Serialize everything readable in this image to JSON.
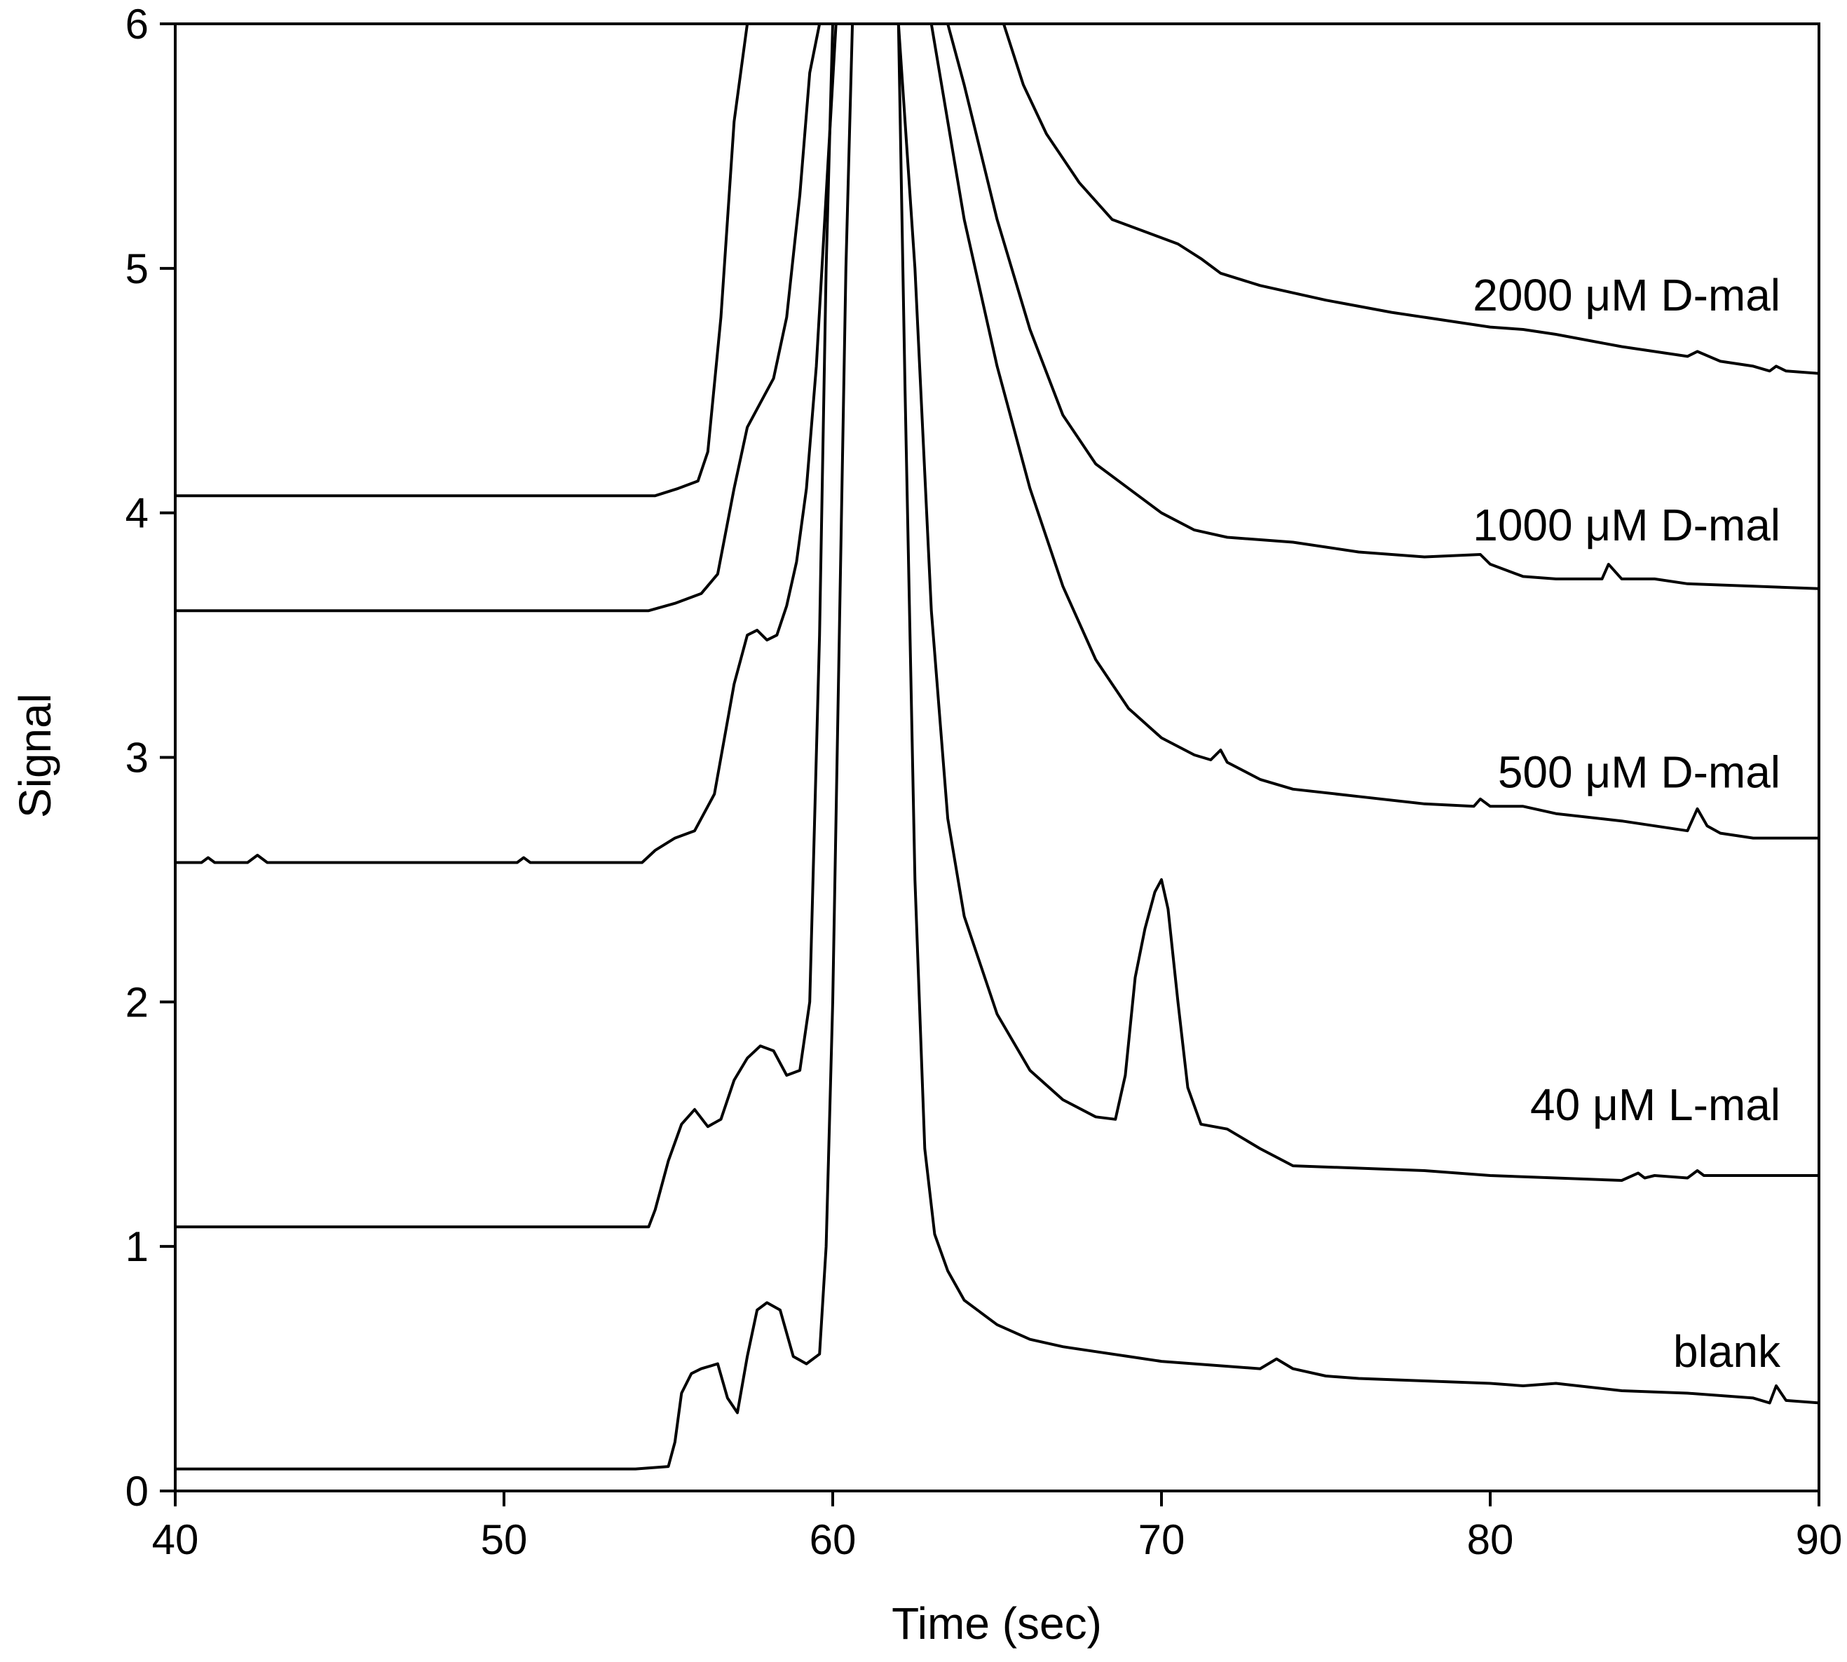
{
  "chart_data": {
    "type": "line",
    "title": "",
    "xlabel": "Time (sec)",
    "ylabel": "Signal",
    "xlim": [
      40,
      90
    ],
    "ylim": [
      0,
      6
    ],
    "xticks": [
      40,
      50,
      60,
      70,
      80,
      90
    ],
    "yticks": [
      0,
      1,
      2,
      3,
      4,
      5,
      6
    ],
    "grid": false,
    "legend": "inline labels at right of each trace",
    "series": [
      {
        "name": "blank",
        "label": "blank",
        "label_at": [
          82,
          0.57
        ],
        "x": [
          40,
          50,
          54,
          55,
          55.2,
          55.4,
          55.7,
          56,
          56.5,
          56.8,
          57.1,
          57.4,
          57.7,
          58,
          58.4,
          58.8,
          59.2,
          59.6,
          59.8,
          60.0,
          60.2,
          60.4,
          60.6,
          60.8,
          61.0,
          61.2,
          61.4,
          61.6,
          61.8,
          62.0,
          62.2,
          62.5,
          62.8,
          63.1,
          63.5,
          64.0,
          65,
          66,
          67,
          68,
          69,
          70,
          71,
          72,
          73,
          73.5,
          74,
          75,
          76,
          78,
          80,
          81,
          82,
          84,
          86,
          88,
          88.5,
          88.7,
          89,
          90
        ],
        "y": [
          0.09,
          0.09,
          0.09,
          0.1,
          0.2,
          0.4,
          0.48,
          0.5,
          0.52,
          0.38,
          0.32,
          0.55,
          0.74,
          0.77,
          0.74,
          0.55,
          0.52,
          0.56,
          1.0,
          2.0,
          3.5,
          5.0,
          6.0,
          6.0,
          6.0,
          6.0,
          6.0,
          6.0,
          6.0,
          6.0,
          4.5,
          2.5,
          1.4,
          1.05,
          0.9,
          0.78,
          0.68,
          0.62,
          0.59,
          0.57,
          0.55,
          0.53,
          0.52,
          0.51,
          0.5,
          0.54,
          0.5,
          0.47,
          0.46,
          0.45,
          0.44,
          0.43,
          0.44,
          0.41,
          0.4,
          0.38,
          0.36,
          0.43,
          0.37,
          0.36
        ]
      },
      {
        "name": "40 µM L-mal",
        "label": "40 μM L-mal",
        "label_at": [
          82,
          1.58
        ],
        "x": [
          40,
          50,
          54.4,
          54.6,
          55,
          55.4,
          55.8,
          56.2,
          56.6,
          57,
          57.4,
          57.8,
          58.2,
          58.6,
          59,
          59.3,
          59.6,
          59.8,
          60.0,
          60.3,
          60.6,
          61.0,
          61.5,
          62.0,
          62.5,
          63,
          63.5,
          64,
          65,
          66,
          67,
          68,
          68.6,
          68.9,
          69.2,
          69.5,
          69.8,
          70.0,
          70.2,
          70.5,
          70.8,
          71.2,
          72,
          73,
          74,
          76,
          78,
          80,
          82,
          84,
          84.5,
          84.7,
          85,
          86,
          86.3,
          86.5,
          87,
          88,
          90
        ],
        "y": [
          1.08,
          1.08,
          1.08,
          1.15,
          1.35,
          1.5,
          1.56,
          1.49,
          1.52,
          1.68,
          1.77,
          1.82,
          1.8,
          1.7,
          1.72,
          2.0,
          3.5,
          5.0,
          6.0,
          6.0,
          6.0,
          6.0,
          6.0,
          6.0,
          5.0,
          3.6,
          2.75,
          2.35,
          1.95,
          1.72,
          1.6,
          1.53,
          1.52,
          1.7,
          2.1,
          2.3,
          2.45,
          2.5,
          2.38,
          2.0,
          1.65,
          1.5,
          1.48,
          1.4,
          1.33,
          1.32,
          1.31,
          1.29,
          1.28,
          1.27,
          1.3,
          1.28,
          1.29,
          1.28,
          1.31,
          1.29,
          1.29,
          1.29,
          1.29
        ]
      },
      {
        "name": "500 µM D-mal",
        "label": "500 μM D-mal",
        "label_at": [
          82,
          2.94
        ],
        "x": [
          40,
          40.8,
          41,
          41.2,
          42.2,
          42.5,
          42.8,
          46,
          50.4,
          50.6,
          50.8,
          54.2,
          54.6,
          55.2,
          55.8,
          56.4,
          57,
          57.4,
          57.7,
          58.0,
          58.3,
          58.6,
          58.9,
          59.2,
          59.5,
          59.8,
          60.1,
          60.5,
          61,
          62,
          63,
          64,
          65,
          65.5,
          66,
          67,
          68,
          69,
          70,
          71,
          71.5,
          71.8,
          72,
          73,
          74,
          76,
          78,
          79.5,
          79.7,
          80,
          81,
          82,
          84,
          86,
          86.3,
          86.6,
          87,
          88,
          90
        ],
        "y": [
          2.57,
          2.57,
          2.59,
          2.57,
          2.57,
          2.6,
          2.57,
          2.57,
          2.57,
          2.59,
          2.57,
          2.57,
          2.62,
          2.67,
          2.7,
          2.85,
          3.3,
          3.5,
          3.52,
          3.48,
          3.5,
          3.62,
          3.8,
          4.1,
          4.6,
          5.3,
          6.0,
          6.0,
          6.0,
          6.0,
          6.0,
          5.2,
          4.6,
          4.35,
          4.1,
          3.7,
          3.4,
          3.2,
          3.08,
          3.01,
          2.99,
          3.03,
          2.98,
          2.91,
          2.87,
          2.84,
          2.81,
          2.8,
          2.83,
          2.8,
          2.8,
          2.77,
          2.74,
          2.7,
          2.79,
          2.72,
          2.69,
          2.67,
          2.67
        ]
      },
      {
        "name": "1000 µM D-mal",
        "label": "1000 μM D-mal",
        "label_at": [
          82,
          3.95
        ],
        "x": [
          40,
          50,
          54.4,
          55.2,
          56,
          56.5,
          57,
          57.4,
          57.8,
          58.2,
          58.6,
          59,
          59.3,
          59.6,
          60.0,
          60.5,
          61,
          62,
          63,
          63.5,
          64,
          65,
          66,
          67,
          68,
          69,
          70,
          71,
          72,
          74,
          76,
          78,
          79.7,
          80,
          81,
          82,
          83.4,
          83.6,
          84,
          85,
          86,
          88,
          90
        ],
        "y": [
          3.6,
          3.6,
          3.6,
          3.63,
          3.67,
          3.75,
          4.1,
          4.35,
          4.45,
          4.55,
          4.8,
          5.3,
          5.8,
          6.0,
          6.0,
          6.0,
          6.0,
          6.0,
          6.0,
          6.0,
          5.75,
          5.2,
          4.75,
          4.4,
          4.2,
          4.1,
          4.0,
          3.93,
          3.9,
          3.88,
          3.84,
          3.82,
          3.83,
          3.79,
          3.74,
          3.73,
          3.73,
          3.79,
          3.73,
          3.73,
          3.71,
          3.7,
          3.69
        ]
      },
      {
        "name": "2000 µM D-mal",
        "label": "2000 μM D-mal",
        "label_at": [
          82,
          4.89
        ],
        "x": [
          40,
          50,
          54.6,
          55.3,
          55.9,
          56.2,
          56.6,
          57,
          57.4,
          57.8,
          58.2,
          60,
          62,
          64,
          65.2,
          65.8,
          66.5,
          67.5,
          68.5,
          69.5,
          70.5,
          71.2,
          71.8,
          73,
          75,
          77,
          79,
          80,
          81,
          82,
          84,
          86,
          86.3,
          87,
          88,
          88.5,
          88.7,
          89,
          90
        ],
        "y": [
          4.07,
          4.07,
          4.07,
          4.1,
          4.13,
          4.25,
          4.8,
          5.6,
          6.0,
          6.0,
          6.0,
          6.0,
          6.0,
          6.0,
          6.0,
          5.75,
          5.55,
          5.35,
          5.2,
          5.15,
          5.1,
          5.04,
          4.98,
          4.93,
          4.87,
          4.82,
          4.78,
          4.76,
          4.75,
          4.73,
          4.68,
          4.64,
          4.66,
          4.62,
          4.6,
          4.58,
          4.6,
          4.58,
          4.57
        ]
      }
    ]
  }
}
